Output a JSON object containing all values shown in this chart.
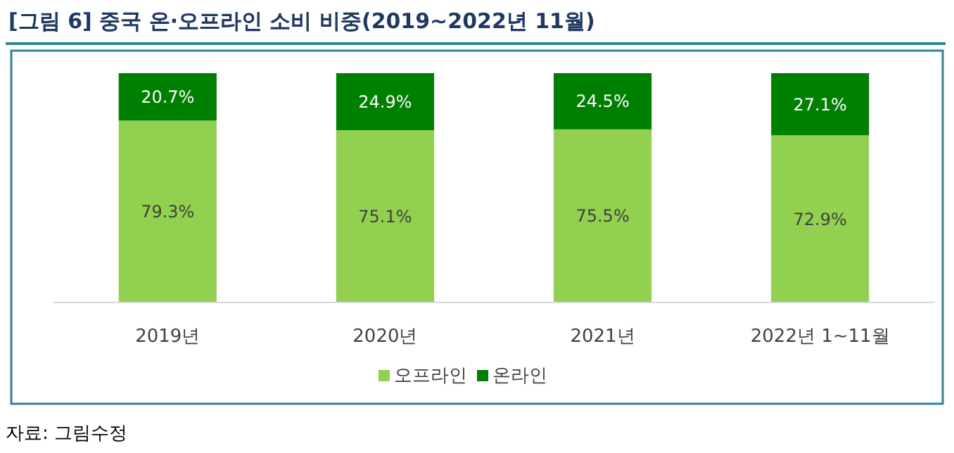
{
  "chart_data": {
    "type": "bar",
    "title": "[그림 6] 중국 온·오프라인 소비 비중(2019~2022년 11월)",
    "categories": [
      "2019년",
      "2020년",
      "2021년",
      "2022년 1~11월"
    ],
    "stacked": true,
    "legend": "bottom",
    "series": [
      {
        "name": "오프라인",
        "color": "#92d050",
        "values": [
          79.3,
          75.1,
          75.5,
          72.9
        ],
        "value_labels": [
          "79.3%",
          "75.1%",
          "75.5%",
          "72.9%"
        ]
      },
      {
        "name": "온라인",
        "color": "#008000",
        "values": [
          20.7,
          24.9,
          24.5,
          27.1
        ],
        "value_labels": [
          "20.7%",
          "24.9%",
          "24.5%",
          "27.1%"
        ]
      }
    ],
    "annotations": [
      "자료: 그림수정"
    ]
  }
}
